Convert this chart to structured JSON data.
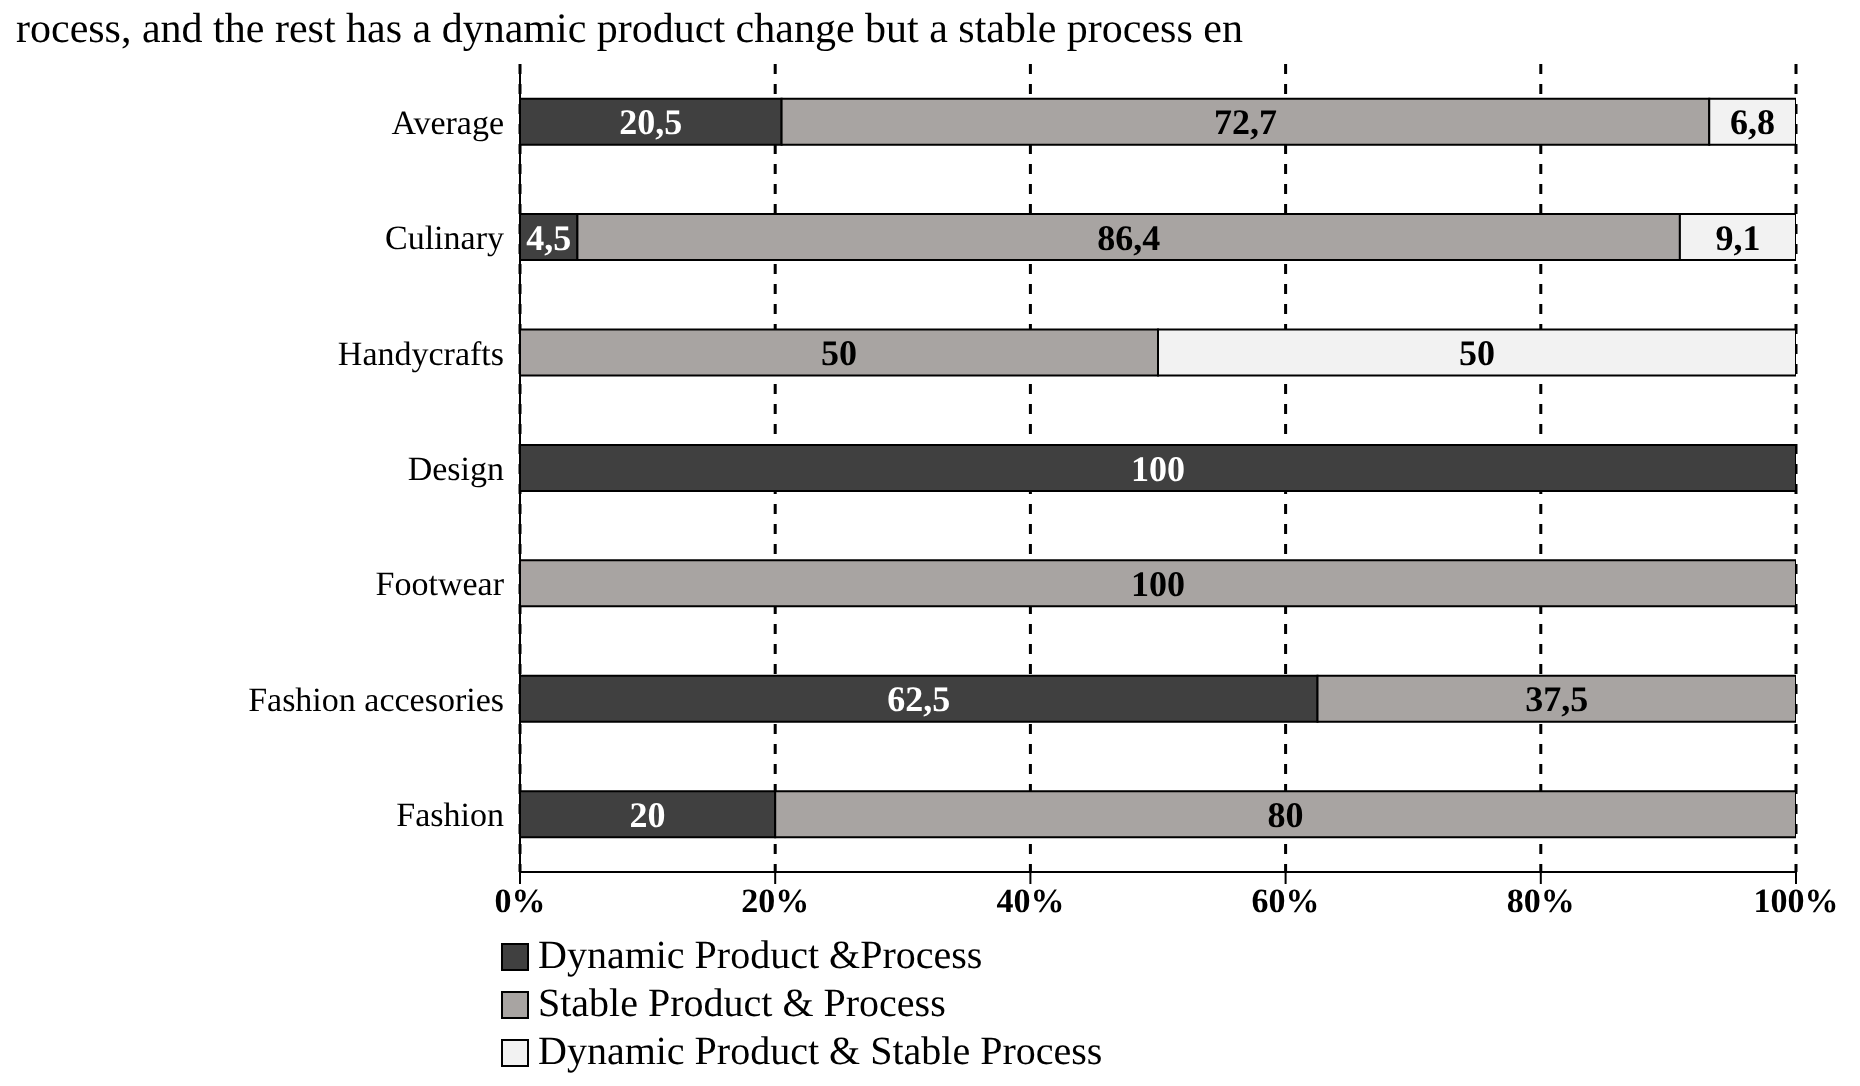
{
  "chart_data": {
    "type": "bar",
    "orientation": "horizontal",
    "stacked": true,
    "annotations": [
      "rocess, and the rest has a dynamic product change but a stable process en"
    ],
    "categories": [
      "Average",
      "Culinary",
      "Handycrafts",
      "Design",
      "Footwear",
      "Fashion accesories",
      "Fashion"
    ],
    "series": [
      {
        "name": "Dynamic Product &Process",
        "color": "#404040",
        "values": [
          20.5,
          4.5,
          null,
          100,
          null,
          62.5,
          20
        ],
        "value_labels": [
          "20,5",
          "4,5",
          null,
          "100",
          null,
          "62,5",
          "20"
        ]
      },
      {
        "name": "Stable Product & Process",
        "color": "#a8a4a2",
        "values": [
          72.7,
          86.4,
          50,
          null,
          100,
          37.5,
          80
        ],
        "value_labels": [
          "72,7",
          "86,4",
          "50",
          null,
          "100",
          "37,5",
          "80"
        ]
      },
      {
        "name": "Dynamic Product & Stable Process",
        "color": "#f2f2f2",
        "values": [
          6.8,
          9.1,
          50,
          null,
          null,
          null,
          null
        ],
        "value_labels": [
          "6,8",
          "9,1",
          "50",
          null,
          null,
          null,
          null
        ]
      }
    ],
    "xlim": [
      0,
      100
    ],
    "xticks": [
      {
        "value": 0,
        "label": "0%"
      },
      {
        "value": 20,
        "label": "20%"
      },
      {
        "value": 40,
        "label": "40%"
      },
      {
        "value": 60,
        "label": "60%"
      },
      {
        "value": 80,
        "label": "80%"
      },
      {
        "value": 100,
        "label": "100%"
      }
    ],
    "grid": "x",
    "legend": "bottom"
  }
}
